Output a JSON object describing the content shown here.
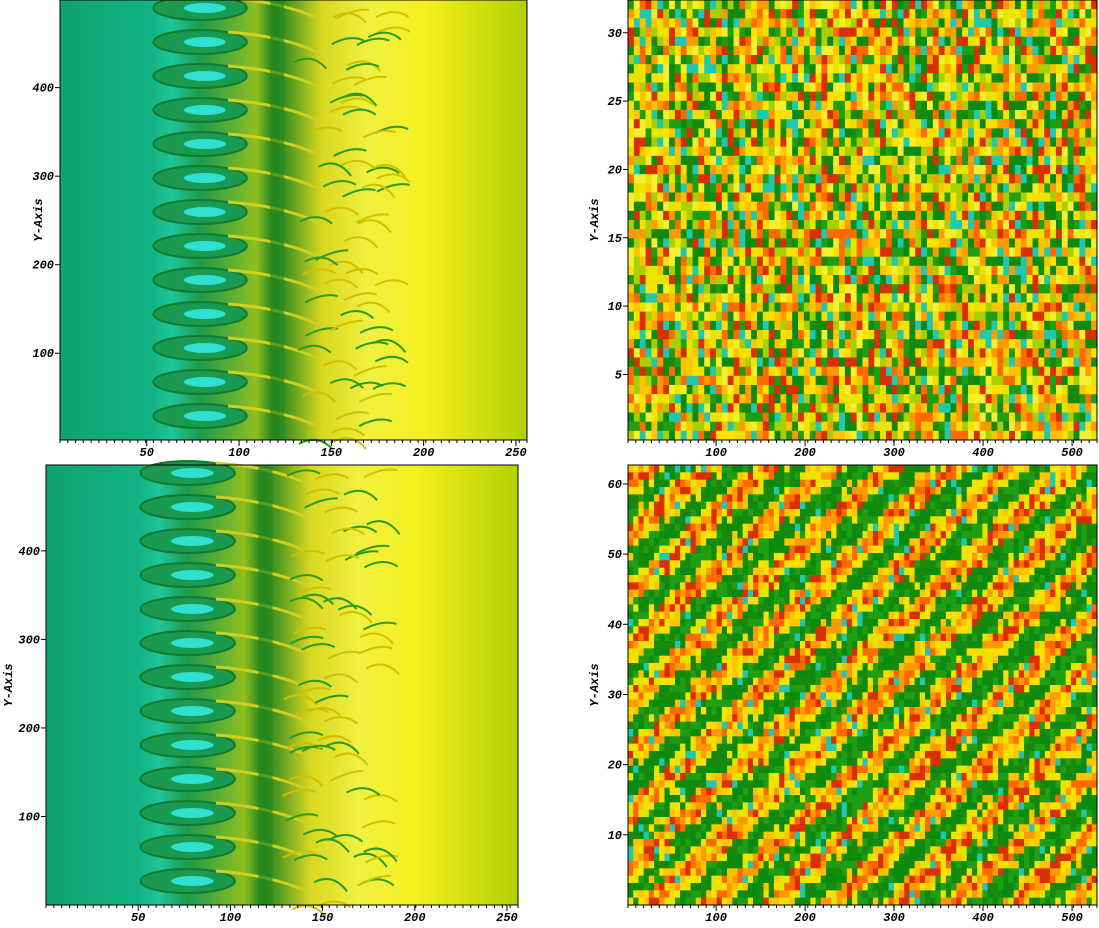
{
  "chart_data": [
    {
      "type": "heatmap",
      "field": "shear",
      "ylabel": "Y-Axis",
      "xlim": [
        3,
        256
      ],
      "ylim": [
        2,
        499
      ],
      "xticks": [
        50,
        100,
        150,
        200,
        250
      ],
      "yticks": [
        100,
        200,
        300,
        400
      ]
    },
    {
      "type": "heatmap",
      "field": "noise",
      "ylabel": "Y-Axis",
      "xlim": [
        1,
        528
      ],
      "ylim": [
        0.2,
        32.4
      ],
      "xticks": [
        100,
        200,
        300,
        400,
        500
      ],
      "yticks": [
        5,
        10,
        15,
        20,
        25,
        30
      ]
    },
    {
      "type": "heatmap",
      "field": "shear",
      "ylabel": "Y-Axis",
      "xlim": [
        0,
        256
      ],
      "ylim": [
        0,
        497
      ],
      "xticks": [
        50,
        100,
        150,
        200,
        250
      ],
      "yticks": [
        100,
        200,
        300,
        400
      ]
    },
    {
      "type": "heatmap",
      "field": "diagonal",
      "ylabel": "Y-Axis",
      "xlim": [
        1,
        528
      ],
      "ylim": [
        0,
        62.7
      ],
      "xticks": [
        100,
        200,
        300,
        400,
        500
      ],
      "yticks": [
        10,
        20,
        30,
        40,
        50,
        60
      ]
    }
  ]
}
